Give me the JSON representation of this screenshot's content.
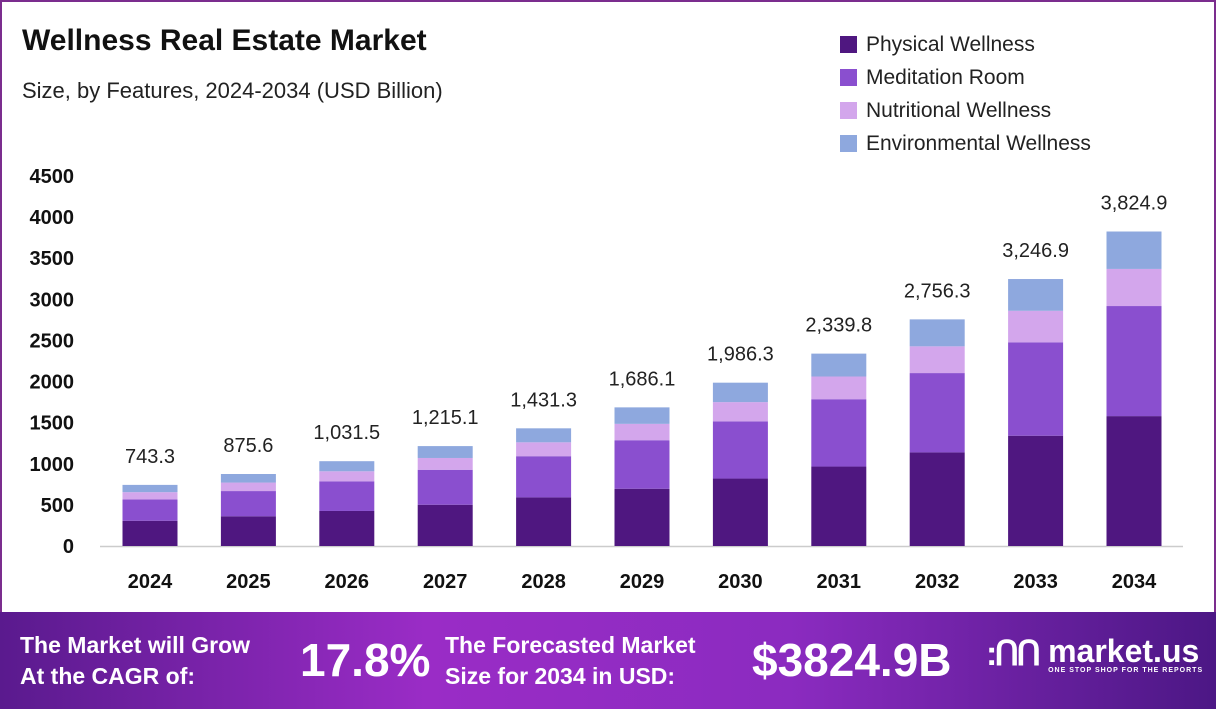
{
  "chart_data": {
    "type": "bar",
    "stacked": true,
    "title": "Wellness Real Estate Market",
    "subtitle": "Size, by Features, 2024-2034 (USD Billion)",
    "categories": [
      "2024",
      "2025",
      "2026",
      "2027",
      "2028",
      "2029",
      "2030",
      "2031",
      "2032",
      "2033",
      "2034"
    ],
    "series": [
      {
        "name": "Physical Wellness",
        "color": "#4f1780",
        "values": [
          307.0,
          361.6,
          426.0,
          501.8,
          591.1,
          696.4,
          820.3,
          966.3,
          1138.4,
          1341.0,
          1579.7
        ]
      },
      {
        "name": "Meditation Room",
        "color": "#8a4fcf",
        "values": [
          260.2,
          306.5,
          361.0,
          425.3,
          501.0,
          590.1,
          695.2,
          818.9,
          964.7,
          1136.4,
          1338.7
        ]
      },
      {
        "name": "Nutritional Wellness",
        "color": "#d3a6ec",
        "values": [
          87.7,
          103.3,
          121.7,
          143.4,
          168.9,
          199.0,
          234.4,
          276.1,
          325.2,
          383.1,
          451.3
        ]
      },
      {
        "name": "Environmental Wellness",
        "color": "#8ea8de",
        "values": [
          88.4,
          104.2,
          122.8,
          144.6,
          170.3,
          200.6,
          236.4,
          278.5,
          328.0,
          386.4,
          455.2
        ]
      }
    ],
    "totals": [
      "743.3",
      "875.6",
      "1,031.5",
      "1,215.1",
      "1,431.3",
      "1,686.1",
      "1,986.3",
      "2,339.8",
      "2,756.3",
      "3,246.9",
      "3,824.9"
    ],
    "yticks": [
      "0",
      "500",
      "1000",
      "1500",
      "2000",
      "2500",
      "3000",
      "3500",
      "4000",
      "4500"
    ],
    "ylim": [
      0,
      4500
    ],
    "xlabel": "",
    "ylabel": "",
    "grid": false,
    "legend_position": "top-right"
  },
  "footer": {
    "cagr_label_1": "The Market will Grow",
    "cagr_label_2": "At the CAGR of:",
    "cagr_value": "17.8%",
    "forecast_label_1": "The Forecasted Market",
    "forecast_label_2": "Size for 2034 in USD:",
    "forecast_value": "$3824.9B",
    "logo_name": "market.us",
    "logo_tagline": "ONE STOP SHOP FOR THE REPORTS"
  }
}
